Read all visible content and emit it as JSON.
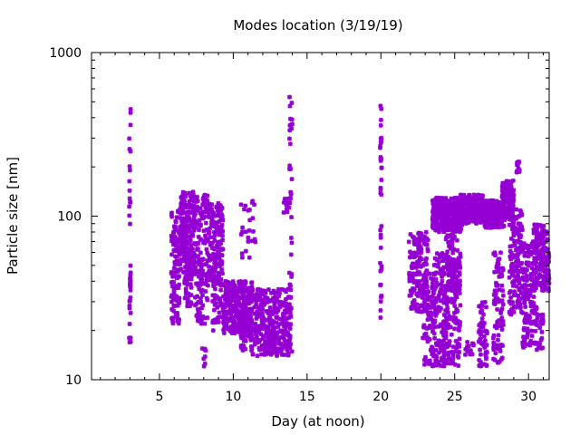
{
  "chart_data": {
    "type": "scatter",
    "title": "Modes location (3/19/19)",
    "xlabel": "Day (at noon)",
    "ylabel": "Particle size [nm]",
    "xlim": [
      0.4,
      31.4
    ],
    "ylim": [
      10,
      1000
    ],
    "y_scale": "log",
    "x_ticks": [
      5,
      10,
      15,
      20,
      25,
      30
    ],
    "y_ticks": [
      10,
      100,
      1000
    ],
    "grid": false,
    "marker_color": "#9400d3",
    "clusters": [
      {
        "x": [
          2.95,
          3.05
        ],
        "y": [
          15,
          540
        ],
        "n": 30
      },
      {
        "x": [
          3.0,
          3.05
        ],
        "y": [
          36,
          50
        ],
        "n": 10
      },
      {
        "x": [
          5.8,
          6.4
        ],
        "y": [
          22,
          110
        ],
        "n": 120
      },
      {
        "x": [
          6.4,
          7.4
        ],
        "y": [
          45,
          145
        ],
        "n": 200
      },
      {
        "x": [
          6.7,
          7.2
        ],
        "y": [
          28,
          60
        ],
        "n": 60
      },
      {
        "x": [
          7.4,
          8.3
        ],
        "y": [
          22,
          135
        ],
        "n": 150
      },
      {
        "x": [
          7.9,
          8.2
        ],
        "y": [
          12,
          16
        ],
        "n": 8
      },
      {
        "x": [
          8.3,
          9.3
        ],
        "y": [
          38,
          120
        ],
        "n": 160
      },
      {
        "x": [
          8.6,
          9.2
        ],
        "y": [
          20,
          45
        ],
        "n": 50
      },
      {
        "x": [
          9.3,
          11.3
        ],
        "y": [
          19,
          40
        ],
        "n": 300
      },
      {
        "x": [
          10.5,
          11.3
        ],
        "y": [
          15,
          25
        ],
        "n": 60
      },
      {
        "x": [
          10.5,
          11.5
        ],
        "y": [
          55,
          130
        ],
        "n": 25
      },
      {
        "x": [
          11.3,
          13.9
        ],
        "y": [
          14,
          36
        ],
        "n": 320
      },
      {
        "x": [
          12.3,
          12.9
        ],
        "y": [
          14,
          20
        ],
        "n": 50
      },
      {
        "x": [
          13.4,
          13.9
        ],
        "y": [
          105,
          130
        ],
        "n": 15
      },
      {
        "x": [
          13.8,
          14.0
        ],
        "y": [
          12,
          580
        ],
        "n": 35
      },
      {
        "x": [
          19.95,
          20.05
        ],
        "y": [
          22,
          510
        ],
        "n": 40
      },
      {
        "x": [
          21.9,
          23.2
        ],
        "y": [
          26,
          80
        ],
        "n": 160
      },
      {
        "x": [
          22.8,
          23.8
        ],
        "y": [
          12,
          45
        ],
        "n": 110
      },
      {
        "x": [
          23.5,
          25.5
        ],
        "y": [
          80,
          130
        ],
        "n": 320
      },
      {
        "x": [
          23.6,
          25.4
        ],
        "y": [
          12,
          60
        ],
        "n": 260
      },
      {
        "x": [
          24.4,
          25.2
        ],
        "y": [
          35,
          80
        ],
        "n": 80
      },
      {
        "x": [
          25.4,
          26.9
        ],
        "y": [
          90,
          135
        ],
        "n": 240
      },
      {
        "x": [
          25.7,
          26.3
        ],
        "y": [
          14,
          17
        ],
        "n": 15
      },
      {
        "x": [
          26.6,
          27.2
        ],
        "y": [
          12,
          30
        ],
        "n": 60
      },
      {
        "x": [
          27.0,
          28.4
        ],
        "y": [
          85,
          125
        ],
        "n": 200
      },
      {
        "x": [
          27.6,
          28.3
        ],
        "y": [
          12,
          60
        ],
        "n": 90
      },
      {
        "x": [
          28.2,
          29.0
        ],
        "y": [
          95,
          165
        ],
        "n": 130
      },
      {
        "x": [
          28.7,
          29.6
        ],
        "y": [
          25,
          110
        ],
        "n": 160
      },
      {
        "x": [
          29.2,
          29.4
        ],
        "y": [
          185,
          215
        ],
        "n": 15
      },
      {
        "x": [
          29.6,
          30.6
        ],
        "y": [
          15,
          70
        ],
        "n": 160
      },
      {
        "x": [
          30.3,
          31.3
        ],
        "y": [
          35,
          90
        ],
        "n": 150
      },
      {
        "x": [
          30.7,
          31.0
        ],
        "y": [
          15,
          25
        ],
        "n": 20
      },
      {
        "x": [
          31.0,
          31.4
        ],
        "y": [
          35,
          60
        ],
        "n": 40
      }
    ]
  }
}
